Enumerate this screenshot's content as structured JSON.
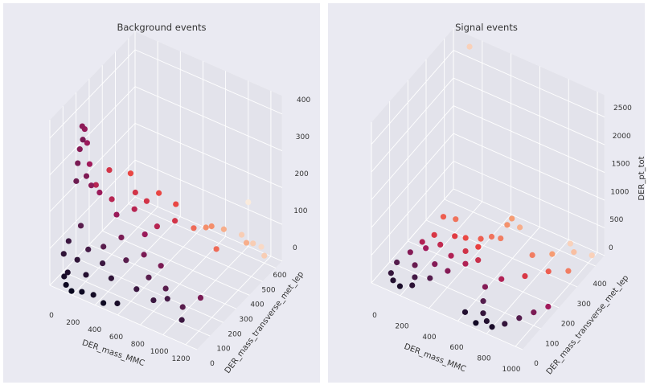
{
  "colormap": [
    "#03051a",
    "#4c1d4b",
    "#a11a5b",
    "#e83f3f",
    "#f69c73",
    "#faebdd"
  ],
  "colors": {
    "background": "#eaeaf2",
    "pane": "#e3e3eb",
    "grid": "#ffffff"
  },
  "chart_data": [
    {
      "type": "scatter3d",
      "title": "Background events",
      "xlabel": "DER_mass_MMC",
      "ylabel": "DER_mass_transverse_met_lep",
      "zlabel": "",
      "color_by": "y",
      "xlim": [
        0,
        1300
      ],
      "ylim": [
        0,
        650
      ],
      "zlim": [
        0,
        450
      ],
      "xticks": [
        "0",
        "200",
        "400",
        "600",
        "800",
        "1000",
        "1200"
      ],
      "yticks": [
        "0",
        "100",
        "200",
        "300",
        "400",
        "500",
        "600"
      ],
      "zticks": [
        "0",
        "100",
        "200",
        "300",
        "400"
      ],
      "grid": true,
      "points": [
        [
          20,
          230,
          350
        ],
        [
          30,
          240,
          340
        ],
        [
          60,
          200,
          330
        ],
        [
          10,
          220,
          290
        ],
        [
          40,
          250,
          300
        ],
        [
          15,
          200,
          260
        ],
        [
          50,
          260,
          240
        ],
        [
          25,
          180,
          220
        ],
        [
          80,
          210,
          230
        ],
        [
          100,
          230,
          200
        ],
        [
          100,
          50,
          30
        ],
        [
          150,
          80,
          60
        ],
        [
          200,
          120,
          80
        ],
        [
          250,
          60,
          40
        ],
        [
          300,
          150,
          90
        ],
        [
          350,
          100,
          70
        ],
        [
          400,
          200,
          110
        ],
        [
          450,
          80,
          50
        ],
        [
          500,
          150,
          80
        ],
        [
          550,
          250,
          120
        ],
        [
          200,
          300,
          150
        ],
        [
          150,
          250,
          180
        ],
        [
          100,
          150,
          120
        ],
        [
          50,
          100,
          90
        ],
        [
          300,
          250,
          140
        ],
        [
          400,
          300,
          150
        ],
        [
          450,
          350,
          160
        ],
        [
          350,
          350,
          170
        ],
        [
          250,
          400,
          190
        ],
        [
          600,
          200,
          90
        ],
        [
          650,
          100,
          40
        ],
        [
          700,
          150,
          60
        ],
        [
          750,
          200,
          80
        ],
        [
          800,
          100,
          30
        ],
        [
          850,
          150,
          50
        ],
        [
          900,
          120,
          40
        ],
        [
          600,
          300,
          130
        ],
        [
          500,
          400,
          170
        ],
        [
          700,
          350,
          140
        ],
        [
          650,
          400,
          160
        ],
        [
          80,
          40,
          20
        ],
        [
          120,
          20,
          10
        ],
        [
          180,
          10,
          5
        ],
        [
          260,
          20,
          10
        ],
        [
          350,
          30,
          10
        ],
        [
          450,
          20,
          5
        ],
        [
          550,
          40,
          10
        ],
        [
          30,
          80,
          60
        ],
        [
          60,
          300,
          170
        ],
        [
          120,
          350,
          200
        ],
        [
          750,
          450,
          90
        ],
        [
          800,
          500,
          80
        ],
        [
          900,
          550,
          70
        ],
        [
          1000,
          600,
          50
        ],
        [
          1100,
          600,
          40
        ],
        [
          1150,
          620,
          30
        ],
        [
          1200,
          600,
          20
        ],
        [
          1100,
          550,
          60
        ],
        [
          1000,
          650,
          120
        ],
        [
          850,
          500,
          90
        ],
        [
          950,
          450,
          60
        ],
        [
          1000,
          150,
          20
        ],
        [
          1100,
          200,
          40
        ],
        [
          1050,
          100,
          10
        ]
      ]
    },
    {
      "type": "scatter3d",
      "title": "Signal events",
      "xlabel": "DER_mass_MMC",
      "ylabel": "DER_mass_transverse_met_lep",
      "zlabel": "DER_pt_tot",
      "color_by": "y",
      "xlim": [
        0,
        1050
      ],
      "ylim": [
        0,
        450
      ],
      "zlim": [
        0,
        2900
      ],
      "xticks": [
        "0",
        "200",
        "400",
        "600",
        "800",
        "1000"
      ],
      "yticks": [
        "0",
        "100",
        "200",
        "300",
        "400"
      ],
      "zticks": [
        "0",
        "500",
        "1000",
        "1500",
        "2000",
        "2500"
      ],
      "grid": true,
      "points": [
        [
          50,
          100,
          50
        ],
        [
          80,
          150,
          80
        ],
        [
          100,
          200,
          100
        ],
        [
          120,
          250,
          60
        ],
        [
          150,
          180,
          120
        ],
        [
          200,
          220,
          90
        ],
        [
          250,
          260,
          150
        ],
        [
          300,
          280,
          100
        ],
        [
          150,
          120,
          40
        ],
        [
          200,
          80,
          30
        ],
        [
          250,
          150,
          60
        ],
        [
          300,
          200,
          80
        ],
        [
          350,
          240,
          70
        ],
        [
          400,
          270,
          90
        ],
        [
          120,
          300,
          200
        ],
        [
          180,
          320,
          150
        ],
        [
          60,
          60,
          20
        ],
        [
          100,
          40,
          10
        ],
        [
          160,
          30,
          10
        ],
        [
          220,
          50,
          20
        ],
        [
          280,
          100,
          30
        ],
        [
          340,
          150,
          40
        ],
        [
          400,
          200,
          50
        ],
        [
          450,
          230,
          60
        ],
        [
          380,
          300,
          100
        ],
        [
          430,
          320,
          120
        ],
        [
          480,
          330,
          110
        ],
        [
          520,
          360,
          400
        ],
        [
          500,
          350,
          300
        ],
        [
          550,
          380,
          200
        ],
        [
          600,
          150,
          50
        ],
        [
          650,
          100,
          40
        ],
        [
          700,
          60,
          30
        ],
        [
          750,
          40,
          20
        ],
        [
          800,
          30,
          10
        ],
        [
          850,
          60,
          10
        ],
        [
          900,
          100,
          20
        ],
        [
          950,
          140,
          30
        ],
        [
          1000,
          180,
          40
        ],
        [
          600,
          40,
          10
        ],
        [
          700,
          20,
          5
        ],
        [
          650,
          200,
          60
        ],
        [
          750,
          250,
          40
        ],
        [
          850,
          300,
          50
        ],
        [
          950,
          330,
          60
        ],
        [
          700,
          330,
          60
        ],
        [
          800,
          360,
          80
        ],
        [
          900,
          400,
          80
        ],
        [
          1000,
          420,
          60
        ],
        [
          850,
          420,
          100
        ],
        [
          150,
          420,
          2850
        ]
      ]
    }
  ]
}
